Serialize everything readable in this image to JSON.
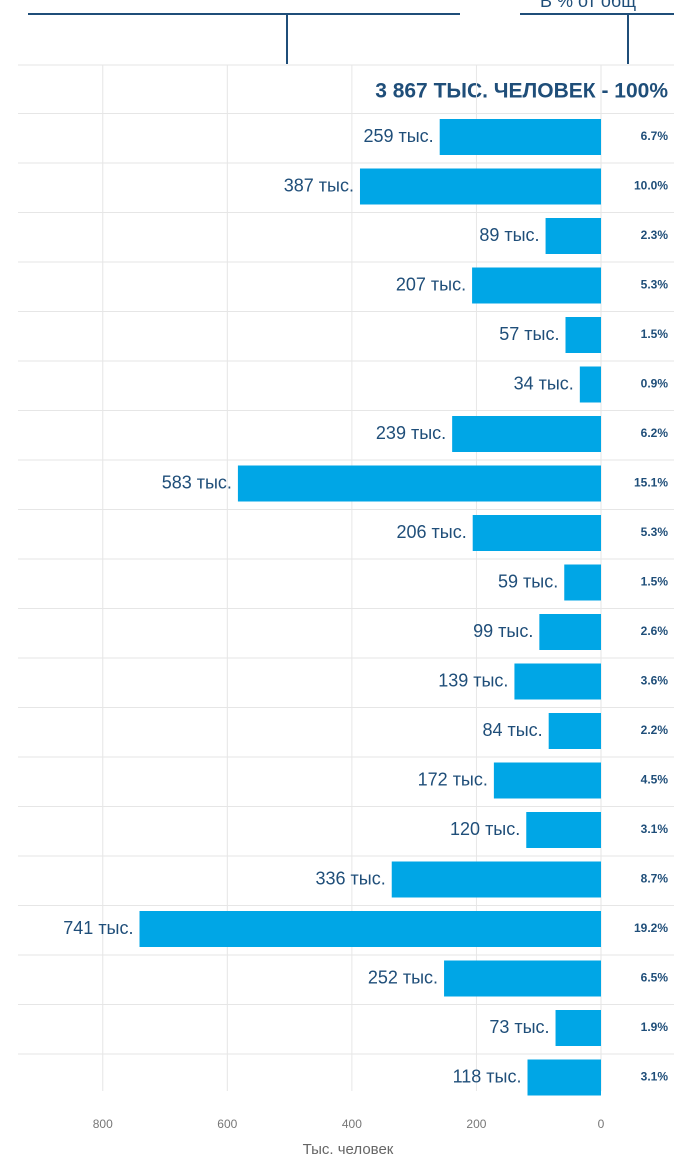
{
  "chart_data": {
    "type": "hbar",
    "headline": "3 867 ТЫС. ЧЕЛОВЕК - 100%",
    "annotation": "В % от общ",
    "x_label": "Тыс. человек",
    "color": "#00a6e6",
    "x_reversed": true,
    "grid": true,
    "xlim": [
      0,
      965
    ],
    "xticks": [
      0,
      200,
      400,
      600,
      800
    ],
    "values": [
      259,
      387,
      89,
      207,
      57,
      34,
      239,
      583,
      206,
      59,
      99,
      139,
      84,
      172,
      120,
      336,
      741,
      252,
      73,
      118
    ],
    "value_labels": [
      "259 тыс.",
      "387 тыс.",
      "89 тыс.",
      "207 тыс.",
      "57 тыс.",
      "34 тыс.",
      "239 тыс.",
      "583 тыс.",
      "206 тыс.",
      "59 тыс.",
      "99 тыс.",
      "139 тыс.",
      "84 тыс.",
      "172 тыс.",
      "120 тыс.",
      "336 тыс.",
      "741 тыс.",
      "252 тыс.",
      "73 тыс.",
      "118 тыс."
    ],
    "share_labels": [
      "6.7%",
      "10.0%",
      "2.3%",
      "5.3%",
      "1.5%",
      "0.9%",
      "6.2%",
      "15.1%",
      "5.3%",
      "1.5%",
      "2.6%",
      "3.6%",
      "2.2%",
      "4.5%",
      "3.1%",
      "8.7%",
      "19.2%",
      "6.5%",
      "1.9%",
      "3.1%"
    ]
  }
}
